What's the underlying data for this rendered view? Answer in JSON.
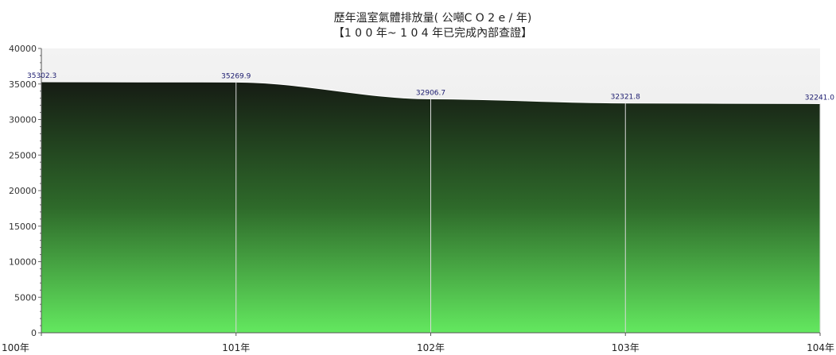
{
  "chart_data": {
    "type": "area",
    "title": "歷年溫室氣體排放量( 公噸C O 2 e / 年)",
    "subtitle": "【1 0 0 年~ 1 0 4 年已完成內部查證】",
    "xlabel": "",
    "ylabel": "",
    "categories": [
      "100年",
      "101年",
      "102年",
      "103年",
      "104年"
    ],
    "values": [
      35302.3,
      35269.9,
      32906.7,
      32321.8,
      32241.0
    ],
    "value_labels": [
      "35302.3",
      "35269.9",
      "32906.7",
      "32321.8",
      "32241.0"
    ],
    "y_ticks": [
      "0",
      "5000",
      "10000",
      "15000",
      "20000",
      "25000",
      "30000",
      "35000",
      "40000"
    ],
    "ylim": [
      0,
      40000
    ],
    "grid": false,
    "legend": "none",
    "colors": {
      "fill_top": "#161c14",
      "fill_mid": "#2e6a2a",
      "fill_bottom": "#63e85f",
      "plot_background_top": "#f3f3f3",
      "plot_background_bottom": "#e2e2e2",
      "divider": "#d8d8d8",
      "data_label": "#1a1a6e"
    }
  }
}
